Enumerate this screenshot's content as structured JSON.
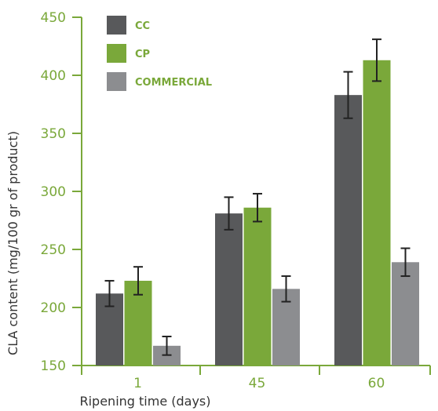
{
  "chart_data": {
    "type": "bar",
    "title": "",
    "xlabel": "Ripening time (days)",
    "ylabel": "CLA content (mg/100 gr of product)",
    "categories": [
      "1",
      "45",
      "60"
    ],
    "ylim": [
      150,
      450
    ],
    "yticks": [
      150,
      200,
      250,
      300,
      350,
      400,
      450
    ],
    "series": [
      {
        "name": "CC",
        "color": "#58595b",
        "values": [
          212,
          281,
          383
        ],
        "error": [
          11,
          14,
          20
        ]
      },
      {
        "name": "CP",
        "color": "#7aa83a",
        "values": [
          223,
          286,
          413
        ],
        "error": [
          12,
          12,
          18
        ]
      },
      {
        "name": "COMMERCIAL",
        "color": "#8c8d90",
        "values": [
          167,
          216,
          239
        ],
        "error": [
          8,
          11,
          12
        ]
      }
    ],
    "legend": "top-left",
    "grid": false,
    "axis_color": "#7aa83a",
    "tick_label_color": "#7aa83a"
  }
}
